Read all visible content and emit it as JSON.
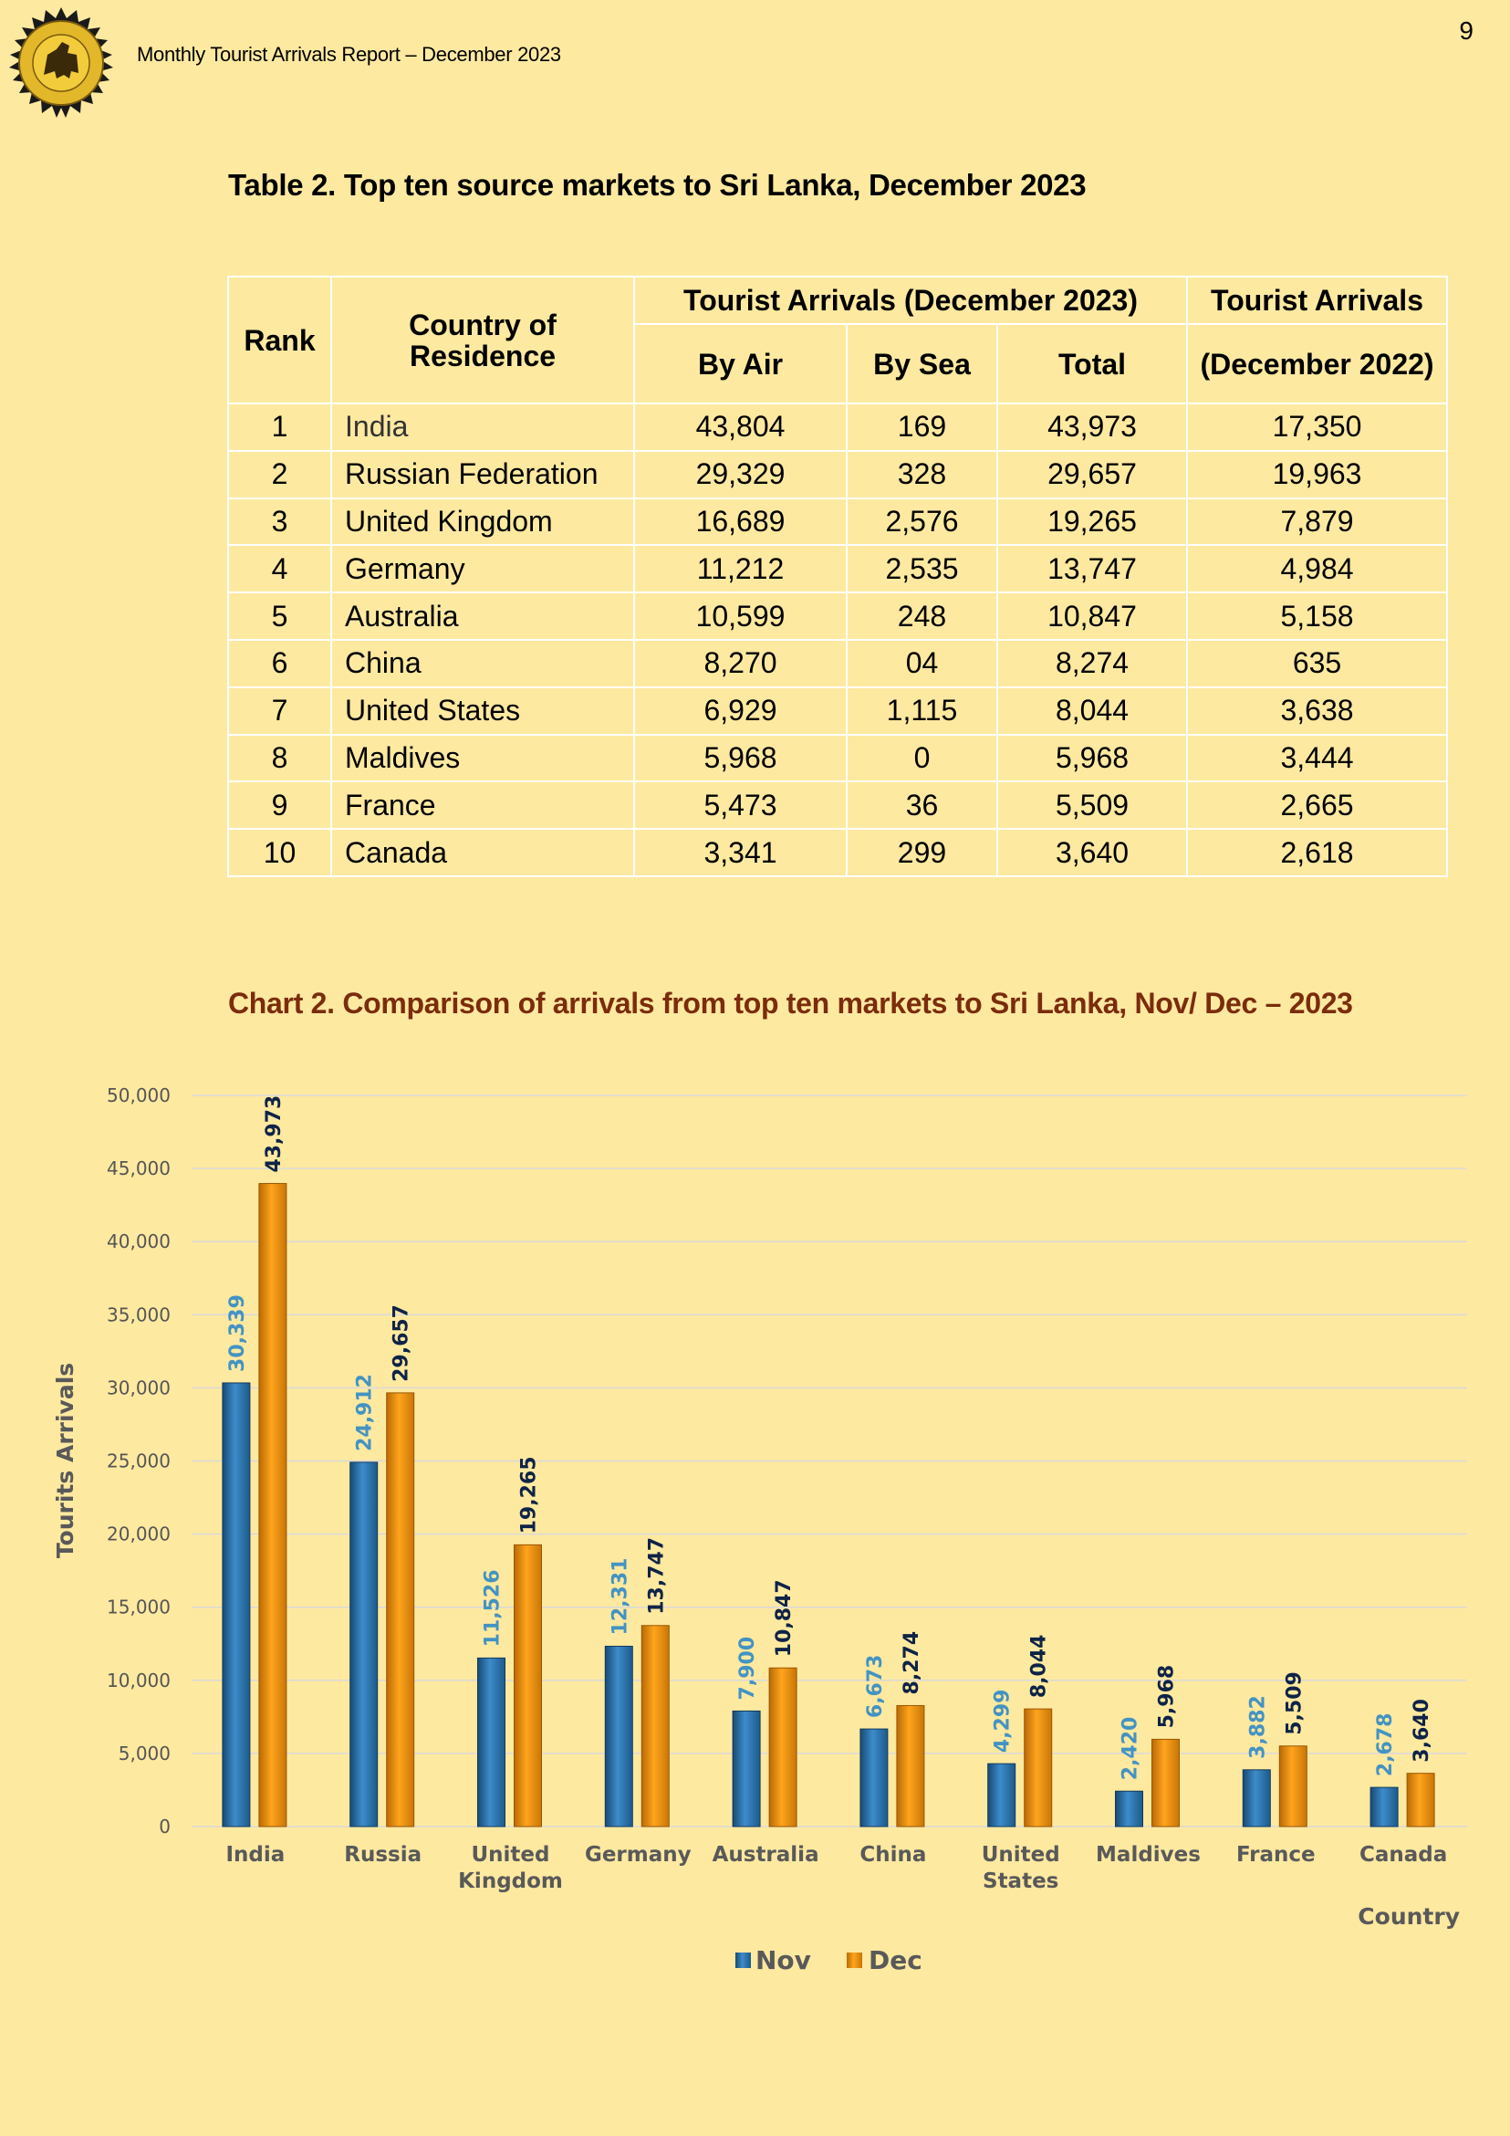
{
  "header": {
    "report_title": "Monthly Tourist Arrivals Report – December 2023",
    "page_number": "9",
    "logo_icon": "lion-emblem-icon"
  },
  "table": {
    "title": "Table 2. Top ten source markets to Sri Lanka, December 2023",
    "headers": {
      "rank": "Rank",
      "country": "Country of Residence",
      "group_dec2023": "Tourist Arrivals (December 2023)",
      "by_air": "By Air",
      "by_sea": "By Sea",
      "total": "Total",
      "dec2022_line1": "Tourist Arrivals",
      "dec2022_line2": "(December 2022)"
    },
    "rows": [
      {
        "rank": "1",
        "country": "India",
        "air": "43,804",
        "sea": "169",
        "total": "43,973",
        "dec2022": "17,350"
      },
      {
        "rank": "2",
        "country": "Russian Federation",
        "air": "29,329",
        "sea": "328",
        "total": "29,657",
        "dec2022": "19,963"
      },
      {
        "rank": "3",
        "country": "United Kingdom",
        "air": "16,689",
        "sea": "2,576",
        "total": "19,265",
        "dec2022": "7,879"
      },
      {
        "rank": "4",
        "country": "Germany",
        "air": "11,212",
        "sea": "2,535",
        "total": "13,747",
        "dec2022": "4,984"
      },
      {
        "rank": "5",
        "country": "Australia",
        "air": "10,599",
        "sea": "248",
        "total": "10,847",
        "dec2022": "5,158"
      },
      {
        "rank": "6",
        "country": "China",
        "air": "8,270",
        "sea": "04",
        "total": "8,274",
        "dec2022": "635"
      },
      {
        "rank": "7",
        "country": "United States",
        "air": "6,929",
        "sea": "1,115",
        "total": "8,044",
        "dec2022": "3,638"
      },
      {
        "rank": "8",
        "country": "Maldives",
        "air": "5,968",
        "sea": "0",
        "total": "5,968",
        "dec2022": "3,444"
      },
      {
        "rank": "9",
        "country": "France",
        "air": "5,473",
        "sea": "36",
        "total": "5,509",
        "dec2022": "2,665"
      },
      {
        "rank": "10",
        "country": "Canada",
        "air": "3,341",
        "sea": "299",
        "total": "3,640",
        "dec2022": "2,618"
      }
    ]
  },
  "chart_data": {
    "type": "bar",
    "title": "Chart 2. Comparison of arrivals from top ten markets to Sri Lanka, Nov/ Dec – 2023",
    "xlabel": "Country",
    "ylabel": "Tourits Arrivals",
    "ylim": [
      0,
      50000
    ],
    "yticks": [
      "0",
      "5,000",
      "10,000",
      "15,000",
      "20,000",
      "25,000",
      "30,000",
      "35,000",
      "40,000",
      "45,000",
      "50,000"
    ],
    "categories": [
      [
        "India"
      ],
      [
        "Russia"
      ],
      [
        "United",
        "Kingdom"
      ],
      [
        "Germany"
      ],
      [
        "Australia"
      ],
      [
        "China"
      ],
      [
        "United",
        "States"
      ],
      [
        "Maldives"
      ],
      [
        "France"
      ],
      [
        "Canada"
      ]
    ],
    "series": [
      {
        "name": "Nov",
        "color": "#2e7ab5",
        "values": [
          30339,
          24912,
          11526,
          12331,
          7900,
          6673,
          4299,
          2420,
          3882,
          2678
        ],
        "labels": [
          "30,339",
          "24,912",
          "11,526",
          "12,331",
          "7,900",
          "6,673",
          "4,299",
          "2,420",
          "3,882",
          "2,678"
        ]
      },
      {
        "name": "Dec",
        "color": "#f39c12",
        "values": [
          43973,
          29657,
          19265,
          13747,
          10847,
          8274,
          8044,
          5968,
          5509,
          3640
        ],
        "labels": [
          "43,973",
          "29,657",
          "19,265",
          "13,747",
          "10,847",
          "8,274",
          "8,044",
          "5,968",
          "5,509",
          "3,640"
        ]
      }
    ],
    "grid": true,
    "legend": "bottom-center"
  }
}
